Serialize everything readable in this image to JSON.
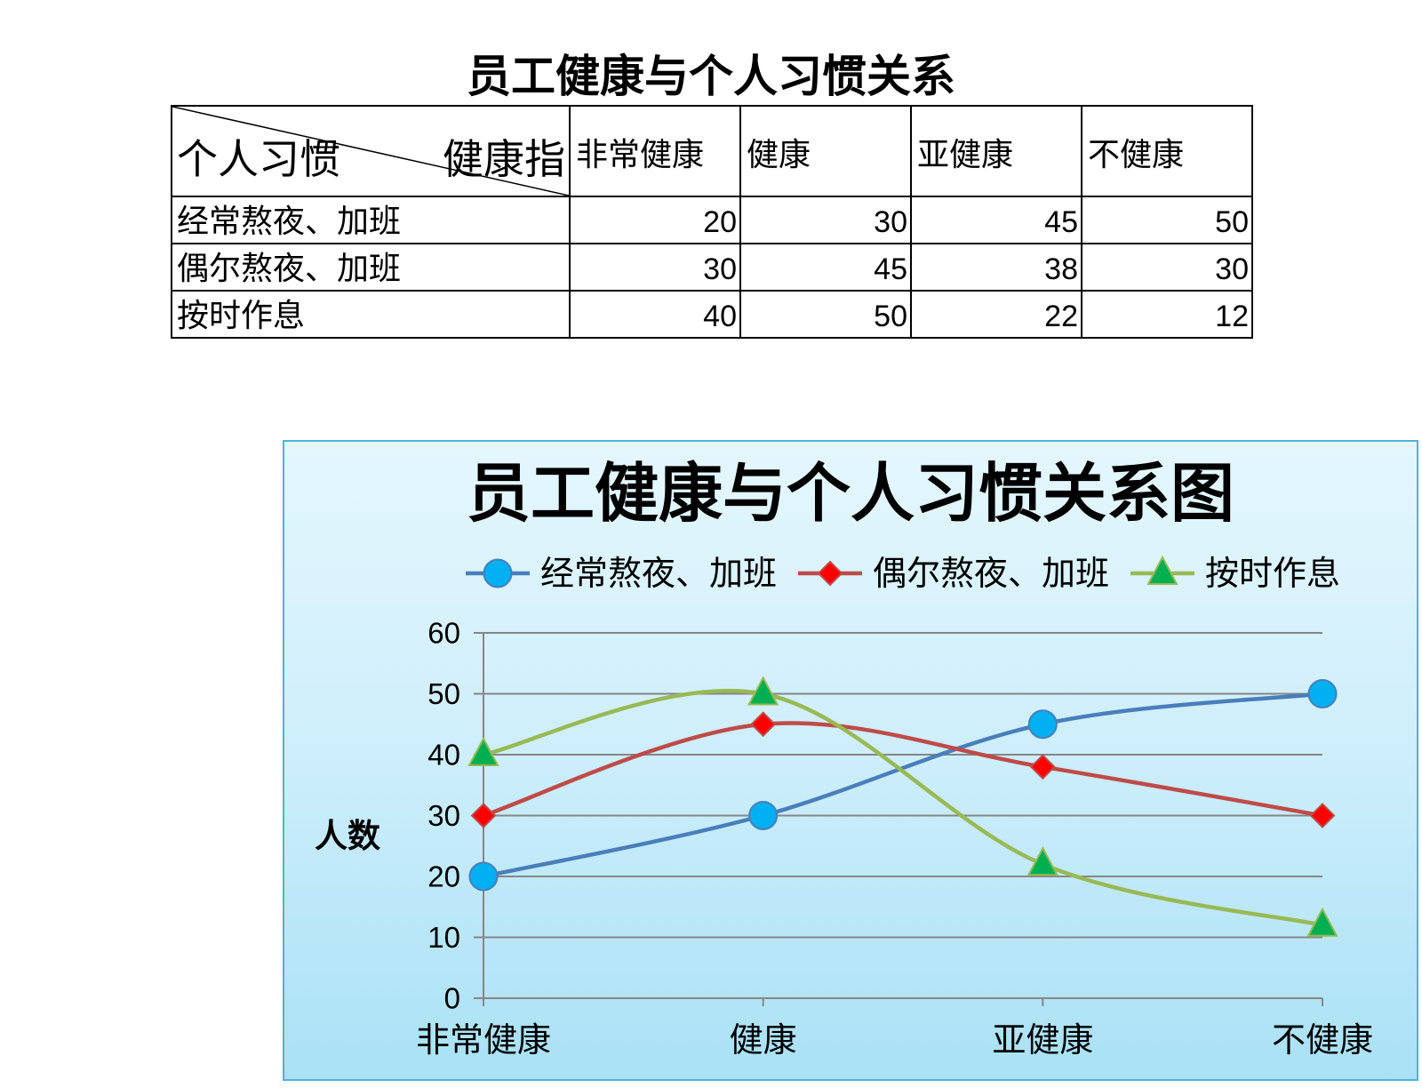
{
  "table": {
    "title": "员工健康与个人习惯关系",
    "corner": {
      "row_header": "个人习惯",
      "col_header": "健康指"
    },
    "columns": [
      "非常健康",
      "健康",
      "亚健康",
      "不健康"
    ],
    "rows": [
      {
        "label": "经常熬夜、加班",
        "values": [
          20,
          30,
          45,
          50
        ]
      },
      {
        "label": "偶尔熬夜、加班",
        "values": [
          30,
          45,
          38,
          30
        ]
      },
      {
        "label": "按时作息",
        "values": [
          40,
          50,
          22,
          12
        ]
      }
    ]
  },
  "chart_data": {
    "type": "line",
    "smooth": true,
    "title": "员工健康与个人习惯关系图",
    "xlabel": "",
    "ylabel": "人数",
    "categories": [
      "非常健康",
      "健康",
      "亚健康",
      "不健康"
    ],
    "ylim": [
      0,
      60
    ],
    "yticks": [
      0,
      10,
      20,
      30,
      40,
      50,
      60
    ],
    "grid": "horizontal",
    "legend": "top",
    "series": [
      {
        "name": "经常熬夜、加班",
        "values": [
          20,
          30,
          45,
          50
        ],
        "color": "#4a7ebb",
        "marker": "circle",
        "marker_color": "#00b0f0"
      },
      {
        "name": "偶尔熬夜、加班",
        "values": [
          30,
          45,
          38,
          30
        ],
        "color": "#be4b48",
        "marker": "diamond",
        "marker_color": "#ff0000"
      },
      {
        "name": "按时作息",
        "values": [
          40,
          50,
          22,
          12
        ],
        "color": "#98b954",
        "marker": "triangle",
        "marker_color": "#00b050"
      }
    ]
  }
}
